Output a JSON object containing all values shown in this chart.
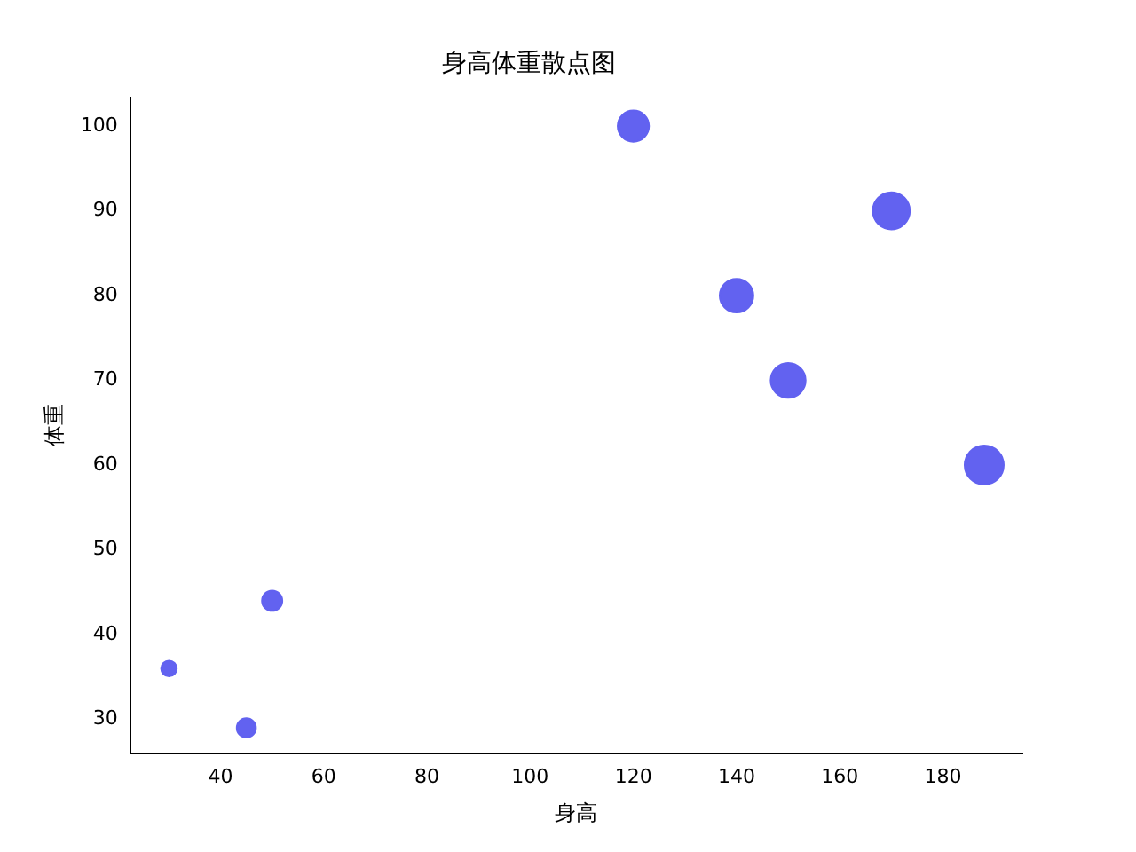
{
  "chart_data": {
    "type": "bubble",
    "title": "身高体重散点图",
    "xlabel": "身高",
    "ylabel": "体重",
    "x": [
      30,
      45,
      50,
      120,
      140,
      150,
      170,
      188
    ],
    "series": [
      {
        "color": "#6262f0",
        "values": [
          36,
          29,
          44,
          100,
          80,
          70,
          90,
          60
        ],
        "sizes": [
          0.16,
          0.24,
          0.27,
          0.64,
          0.74,
          0.8,
          0.9,
          1
        ]
      }
    ],
    "xlim": [
      22.5,
      195.4
    ],
    "ylim": [
      26,
      103.4
    ],
    "xticks": [
      40,
      60,
      80,
      100,
      120,
      140,
      160,
      180
    ],
    "yticks": [
      30,
      40,
      50,
      60,
      70,
      80,
      90,
      100
    ],
    "grid": false,
    "legend": false
  }
}
